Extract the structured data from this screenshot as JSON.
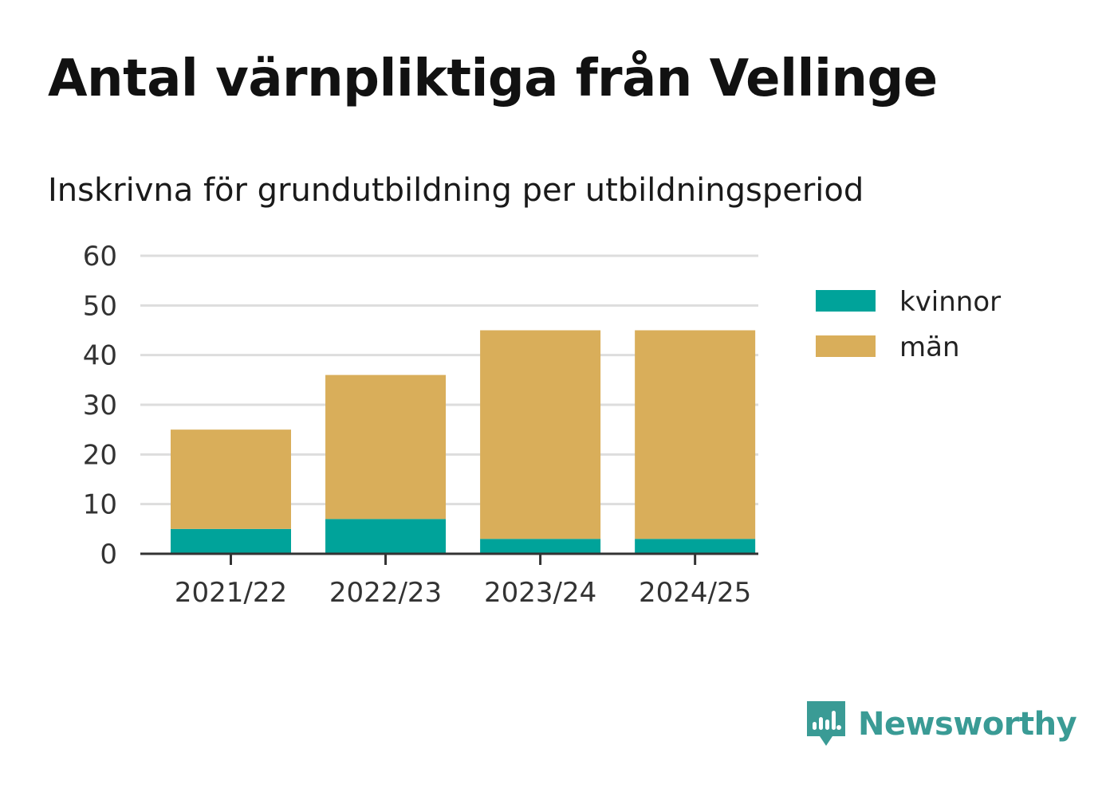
{
  "title": "Antal värnpliktiga från Vellinge",
  "subtitle": "Inskrivna för grundutbildning per utbildningsperiod",
  "brand": {
    "name": "Newsworthy",
    "icon": "newsworthy-logo-icon",
    "color": "#3a9b95"
  },
  "colors": {
    "kvinnor": "#00a39a",
    "man": "#d9ae5a",
    "grid": "#dddddd",
    "axis": "#333333"
  },
  "chart_data": {
    "type": "bar",
    "stacked": true,
    "categories": [
      "2021/22",
      "2022/23",
      "2023/24",
      "2024/25"
    ],
    "series": [
      {
        "name": "kvinnor",
        "values": [
          5,
          7,
          3,
          3
        ],
        "color": "#00a39a"
      },
      {
        "name": "män",
        "values": [
          20,
          29,
          42,
          42
        ],
        "color": "#d9ae5a"
      }
    ],
    "title": "Antal värnpliktiga från Vellinge",
    "subtitle": "Inskrivna för grundutbildning per utbildningsperiod",
    "xlabel": "",
    "ylabel": "",
    "ylim": [
      0,
      60
    ],
    "yticks": [
      0,
      10,
      20,
      30,
      40,
      50,
      60
    ],
    "grid": true,
    "legend": "right"
  }
}
